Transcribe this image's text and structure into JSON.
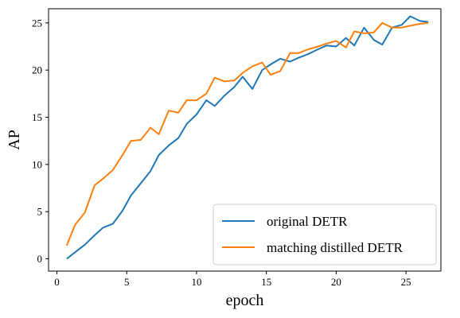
{
  "chart_data": {
    "type": "line",
    "xlabel": "epoch",
    "ylabel": "AP",
    "xlim": [
      -0.6,
      27.5
    ],
    "ylim": [
      -1.3,
      26.5
    ],
    "xticks": [
      0,
      5,
      10,
      15,
      20,
      25
    ],
    "yticks": [
      0,
      5,
      10,
      15,
      20,
      25
    ],
    "grid": false,
    "legend_position": "lower-right",
    "series": [
      {
        "name": "original DETR",
        "color": "#1f77b4",
        "x": [
          0.7,
          1.3,
          2.0,
          2.7,
          3.3,
          4.0,
          4.7,
          5.3,
          6.0,
          6.7,
          7.3,
          8.0,
          8.7,
          9.3,
          10.0,
          10.7,
          11.3,
          12.0,
          12.7,
          13.3,
          14.0,
          14.7,
          15.3,
          16.0,
          16.7,
          17.3,
          18.0,
          18.7,
          19.3,
          20.0,
          20.7,
          21.3,
          22.0,
          22.7,
          23.3,
          24.0,
          24.7,
          25.3,
          26.0,
          26.6
        ],
        "y": [
          0.0,
          0.7,
          1.5,
          2.5,
          3.3,
          3.7,
          5.1,
          6.7,
          8.0,
          9.3,
          11.0,
          12.0,
          12.8,
          14.3,
          15.3,
          16.8,
          16.2,
          17.3,
          18.2,
          19.3,
          18.0,
          20.0,
          20.6,
          21.2,
          20.9,
          21.3,
          21.7,
          22.2,
          22.6,
          22.5,
          23.4,
          22.6,
          24.5,
          23.2,
          22.7,
          24.5,
          24.8,
          25.7,
          25.2,
          25.1
        ]
      },
      {
        "name": "matching distilled DETR",
        "color": "#ff7f0e",
        "x": [
          0.7,
          1.3,
          2.0,
          2.7,
          3.3,
          4.0,
          4.7,
          5.3,
          6.0,
          6.7,
          7.3,
          8.0,
          8.7,
          9.3,
          10.0,
          10.7,
          11.3,
          12.0,
          12.7,
          13.3,
          14.0,
          14.7,
          15.3,
          16.0,
          16.7,
          17.3,
          18.0,
          18.7,
          19.3,
          20.0,
          20.7,
          21.3,
          22.0,
          22.7,
          23.3,
          24.0,
          24.7,
          25.3,
          26.0,
          26.6
        ],
        "y": [
          1.4,
          3.6,
          4.9,
          7.8,
          8.5,
          9.4,
          11.0,
          12.5,
          12.6,
          13.9,
          13.2,
          15.7,
          15.5,
          16.8,
          16.8,
          17.5,
          19.2,
          18.8,
          18.9,
          19.7,
          20.4,
          20.8,
          19.5,
          19.9,
          21.8,
          21.8,
          22.2,
          22.5,
          22.8,
          23.1,
          22.4,
          24.1,
          23.9,
          24.0,
          25.0,
          24.5,
          24.5,
          24.7,
          24.9,
          25.0
        ]
      }
    ]
  }
}
